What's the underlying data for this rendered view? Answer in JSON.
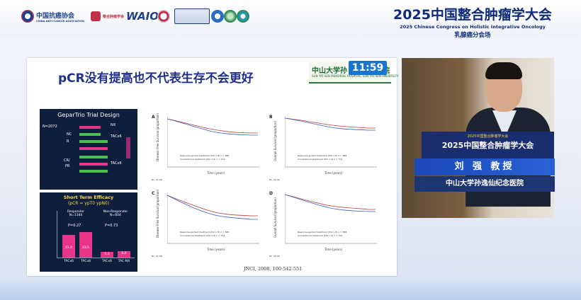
{
  "header": {
    "logos": [
      {
        "icon": "anti-cancer-association-icon",
        "cn": "中国抗癌协会",
        "en": "CHINA ANTI-CANCER ASSOCIATION",
        "color": "#1d3f8c"
      },
      {
        "icon": "integrative-oncology-icon",
        "cn": "整合肿瘤学会",
        "en": "",
        "color": "#c2314a"
      },
      {
        "icon": "waio-icon",
        "cn": "WAIO",
        "en": "",
        "color": "#1d3f8c"
      },
      {
        "icon": "round-seal-icon",
        "cn": "",
        "en": "",
        "color": "#c2314a"
      },
      {
        "icon": "journal-icon",
        "cn": "",
        "en": "",
        "color": "#1d3f8c"
      },
      {
        "icon": "emblem-icon",
        "cn": "",
        "en": "",
        "color": "#2b6cc4"
      },
      {
        "icon": "globe-icon",
        "cn": "",
        "en": "",
        "color": "#2f8a4e"
      }
    ],
    "congress_title": "2025中国整合肿瘤学大会",
    "congress_subtitle": "2025 Chinese Congress on Holistic Integrative Oncology",
    "session": "乳腺癌分会场"
  },
  "slide": {
    "title": "pCR没有提高也不代表生存不会更好",
    "university_cn": "中山大学孙",
    "university_en": "SUN YAT-SEN MEMORIAL HOSPITAL, SUN YAT-SEN UNIVERSITY",
    "university_suffix": "院",
    "timer": "11:59",
    "trial": {
      "title": "GeparTrio Trial Design",
      "n": "N=2072",
      "labels": [
        "NC",
        "R",
        "CR/",
        "PR",
        "TACx6",
        "TACx6",
        "NX"
      ]
    },
    "efficacy": {
      "title": "Short Term Efficacy",
      "subtitle": "(pCR = ypT0 ypN0)",
      "groups": [
        {
          "name": "Responder",
          "n": "N=1344",
          "p": "P=0.27"
        },
        {
          "name": "Non-Responder",
          "n": "N=604",
          "p": "P=0.73"
        }
      ],
      "bars": [
        {
          "label": "TACx6",
          "value": "21.0"
        },
        {
          "label": "TACx8",
          "value": "23.5"
        },
        {
          "label": "TACx6",
          "value": "5.3"
        },
        {
          "label": "TAC-NX",
          "value": "6.0"
        }
      ]
    },
    "km_panels": [
      {
        "letter": "A",
        "ylabel": "Disease Free Survival (proportion)",
        "xlabel": "Time (years)"
      },
      {
        "letter": "B",
        "ylabel": "Overall Survival (proportion)",
        "xlabel": "Time (years)"
      },
      {
        "letter": "C",
        "ylabel": "Disease Free Survival (proportion)",
        "xlabel": "Time (years)"
      },
      {
        "letter": "D",
        "ylabel": "Overall Survival (proportion)",
        "xlabel": "Time (years)"
      }
    ],
    "km_legend": [
      "Response-guided treatment (TAC x 8) n = 886",
      "Conventional treatment (TAC x 6) n = 704"
    ],
    "km_risk": "No. at risk",
    "citation": "JNCI, 2008, 100:542-551"
  },
  "speaker": {
    "podium_top": "2025中国整合肿瘤学大会",
    "podium_main": "2025中国整合肿瘤学大会",
    "name": "刘 强 教授",
    "org": "中山大学孙逸仙纪念医院"
  },
  "colors": {
    "accent": "#1f2f8a",
    "magenta": "#e8358a",
    "navy": "#0e1e3d",
    "timer": "#1a74c9"
  }
}
